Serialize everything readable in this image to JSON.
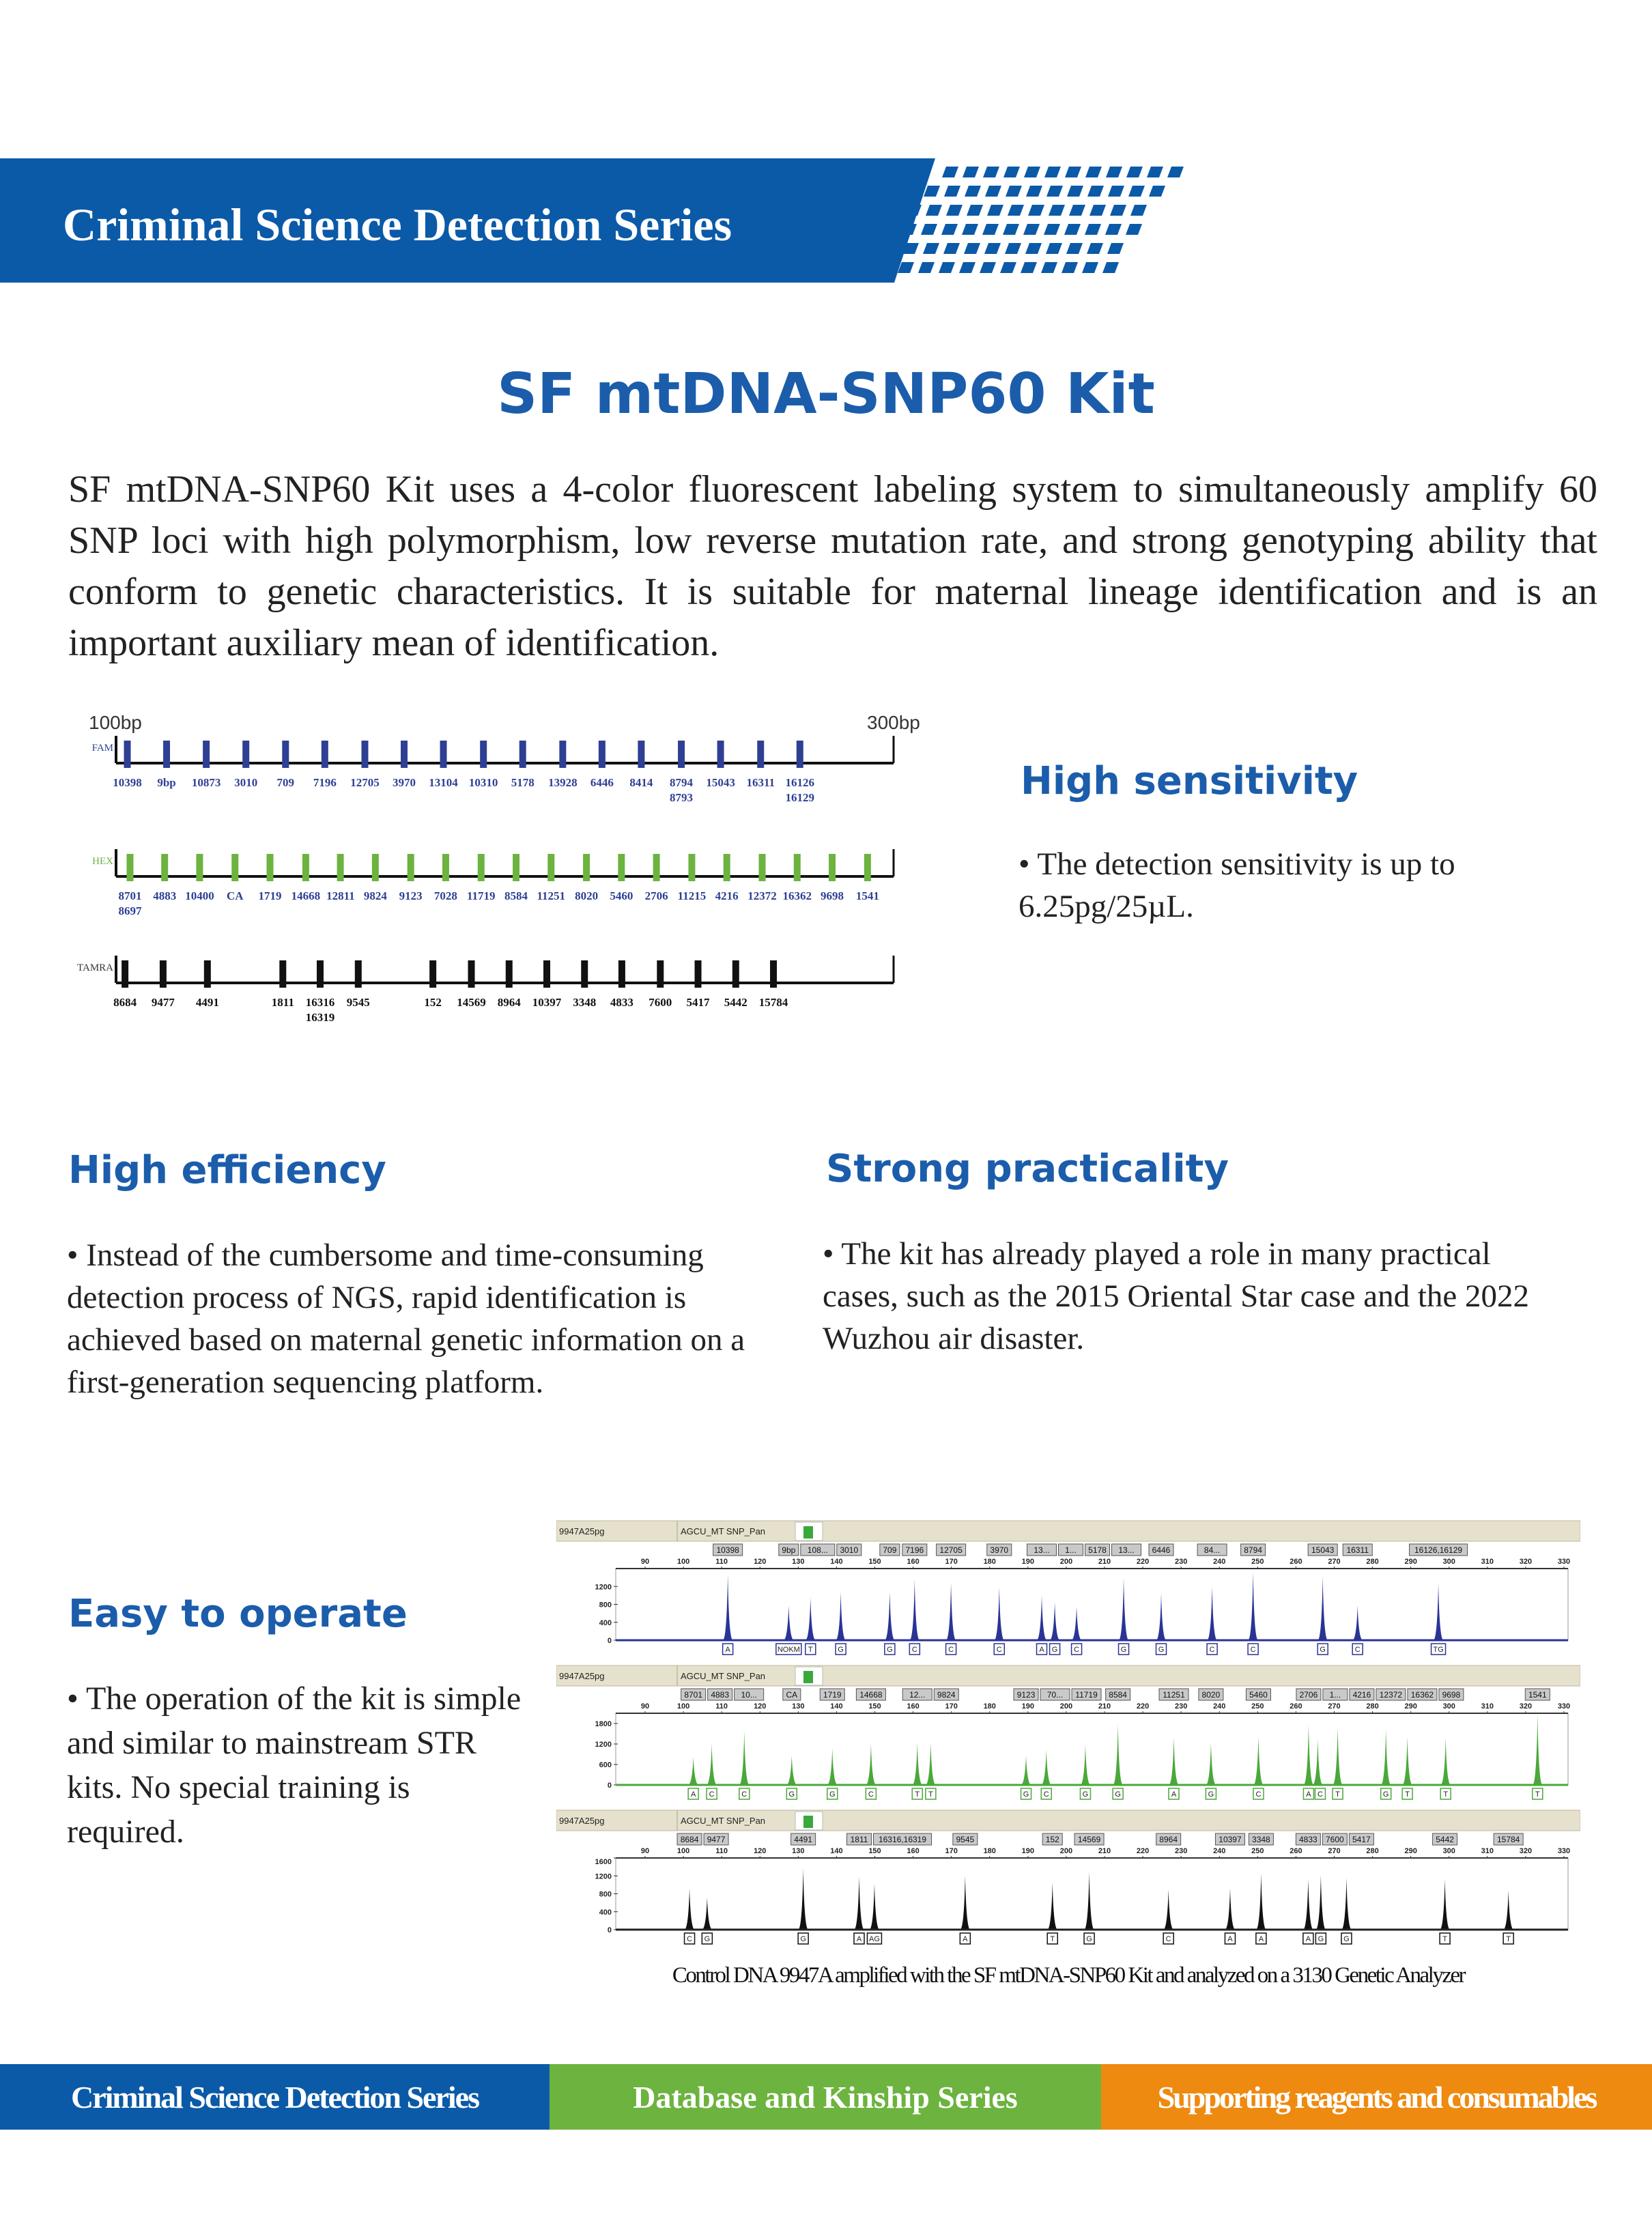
{
  "header": {
    "series_title": "Criminal Science Detection Series",
    "color": "#0b5aa8"
  },
  "product": {
    "title": "SF mtDNA-SNP60 Kit",
    "intro": "SF mtDNA-SNP60 Kit uses a 4-color fluorescent labeling system to simultaneously amplify 60 SNP loci with high polymorphism, low reverse mutation rate, and strong genotyping ability that conform to genetic characteristics. It is suitable for maternal lineage identification and is an important auxiliary mean of identification."
  },
  "marker_diagram": {
    "start_label": "100bp",
    "end_label": "300bp",
    "range_bp": [
      100,
      300
    ],
    "channels": [
      {
        "name": "FAM",
        "color": "#2e3f94",
        "loci": [
          [
            "10398"
          ],
          [
            "9bp"
          ],
          [
            "10873"
          ],
          [
            "3010"
          ],
          [
            "709"
          ],
          [
            "7196"
          ],
          [
            "12705"
          ],
          [
            "3970"
          ],
          [
            "13104"
          ],
          [
            "10310"
          ],
          [
            "5178"
          ],
          [
            "13928"
          ],
          [
            "6446"
          ],
          [
            "8414"
          ],
          [
            "8794",
            "8793"
          ],
          [
            "15043"
          ],
          [
            "16311"
          ],
          [
            "16126",
            "16129"
          ]
        ],
        "positions_bp": [
          102.9,
          113.0,
          123.2,
          133.4,
          143.6,
          153.7,
          164.0,
          174.1,
          184.2,
          194.5,
          204.6,
          214.9,
          225.0,
          235.1,
          245.4,
          255.5,
          265.8,
          275.9
        ]
      },
      {
        "name": "HEX",
        "color": "#6cb33f",
        "loci": [
          [
            "8701",
            "8697"
          ],
          [
            "4883"
          ],
          [
            "10400"
          ],
          [
            "CA"
          ],
          [
            "1719"
          ],
          [
            "14668"
          ],
          [
            "12811"
          ],
          [
            "9824"
          ],
          [
            "9123"
          ],
          [
            "7028"
          ],
          [
            "11719"
          ],
          [
            "8584"
          ],
          [
            "11251"
          ],
          [
            "8020"
          ],
          [
            "5460"
          ],
          [
            "2706"
          ],
          [
            "11215"
          ],
          [
            "4216"
          ],
          [
            "12372"
          ],
          [
            "16362"
          ],
          [
            "9698"
          ],
          [
            "1541"
          ]
        ],
        "positions_bp": [
          103.6,
          112.5,
          121.5,
          130.6,
          139.6,
          148.8,
          157.7,
          166.7,
          175.8,
          184.8,
          193.9,
          202.9,
          211.9,
          221.0,
          230.0,
          239.0,
          248.1,
          257.1,
          266.2,
          275.2,
          284.2,
          293.3
        ]
      },
      {
        "name": "TAMRA",
        "color": "#111111",
        "loci": [
          [
            "8684"
          ],
          [
            "9477"
          ],
          [
            "4491"
          ],
          [
            "1811"
          ],
          [
            "16316",
            "16319"
          ],
          [
            "9545"
          ],
          [
            "152"
          ],
          [
            "14569"
          ],
          [
            "8964"
          ],
          [
            "10397"
          ],
          [
            "3348"
          ],
          [
            "4833"
          ],
          [
            "7600"
          ],
          [
            "5417"
          ],
          [
            "5442"
          ],
          [
            "15784"
          ]
        ],
        "positions_bp": [
          102.3,
          112.1,
          123.5,
          142.9,
          152.5,
          162.3,
          181.5,
          191.4,
          201.1,
          210.8,
          220.5,
          230.1,
          240.0,
          249.7,
          259.4,
          269.1
        ]
      }
    ]
  },
  "features": {
    "sensitivity": {
      "title": "High sensitivity",
      "text": "• The detection sensitivity is up to 6.25pg/25µL."
    },
    "efficiency": {
      "title": "High efficiency",
      "text": "• Instead of the cumbersome and time-consuming detection process of NGS, rapid identification is achieved based on maternal genetic information on a first-generation sequencing platform."
    },
    "practicality": {
      "title": "Strong practicality",
      "text": "• The kit has already played a role in many practical cases, such as the 2015 Oriental Star case and the 2022 Wuzhou air disaster."
    },
    "operate": {
      "title": "Easy to operate",
      "text": "• The operation of the kit is simple and similar to mainstream STR kits. No special training is required."
    }
  },
  "chart_data": {
    "type": "electropherogram",
    "x_range_bp": [
      90,
      330
    ],
    "x_ticks": [
      90,
      100,
      110,
      120,
      130,
      140,
      150,
      160,
      170,
      180,
      190,
      200,
      210,
      220,
      230,
      240,
      250,
      260,
      270,
      280,
      290,
      300,
      310,
      320,
      330
    ],
    "panels": [
      {
        "sample": "9947A25pg",
        "panel": "AGCU_MT SNP_Pan",
        "color": "#2a3496",
        "ymax": 1600,
        "y_ticks": [
          0,
          400,
          800,
          1200
        ],
        "markers": [
          "10398",
          "9bp",
          "108...",
          "3010",
          "709",
          "7196",
          "12705",
          "3970",
          "13...",
          "1...",
          "5178",
          "13...",
          "6446",
          "84...",
          "8794",
          "15043",
          "16311",
          "16126,16129"
        ],
        "peaks_bp": [
          111.6,
          127.5,
          133.2,
          141.1,
          153.9,
          160.4,
          169.9,
          182.5,
          193.6,
          197.0,
          202.7,
          215.0,
          224.8,
          238.1,
          248.8,
          267.0,
          276.1,
          297.2
        ],
        "heights": [
          1465,
          775,
          950,
          1075,
          1075,
          1360,
          1290,
          1185,
          1000,
          850,
          750,
          1390,
          1050,
          1200,
          1525,
          1435,
          775,
          1275
        ],
        "alleles": [
          "A",
          "NOKM",
          "T",
          "G",
          "G",
          "C",
          "C",
          "C",
          "A",
          "G",
          "C",
          "G",
          "G",
          "C",
          "C",
          "G",
          "C",
          "TG"
        ]
      },
      {
        "sample": "9947A25pg",
        "panel": "AGCU_MT SNP_Pan",
        "color": "#4aa83a",
        "ymax": 2100,
        "y_ticks": [
          0,
          600,
          1200,
          1800
        ],
        "markers": [
          "8701",
          "4883",
          "10...",
          "CA",
          "1719",
          "14668",
          "12...",
          "9824",
          "9123",
          "70...",
          "11719",
          "8584",
          "11251",
          "8020",
          "5460",
          "2706",
          "1...",
          "4216",
          "12372",
          "16362",
          "9698",
          "1541"
        ],
        "peaks_bp": [
          102.6,
          107.4,
          115.9,
          128.3,
          138.9,
          149.0,
          161.1,
          164.6,
          189.5,
          194.8,
          205.0,
          213.5,
          228.1,
          237.8,
          250.2,
          263.3,
          265.7,
          270.9,
          283.5,
          289.1,
          299.1,
          323.1
        ],
        "heights": [
          828,
          1207,
          1587,
          862,
          1069,
          1207,
          1241,
          1241,
          862,
          1035,
          1186,
          1780,
          1393,
          1255,
          1428,
          1780,
          1345,
          1690,
          1640,
          1414,
          1380,
          2070
        ],
        "alleles": [
          "A",
          "C",
          "C",
          "G",
          "G",
          "C",
          "T",
          "T",
          "G",
          "C",
          "G",
          "G",
          "A",
          "G",
          "C",
          "A",
          "C",
          "T",
          "G",
          "T",
          "T",
          "T"
        ]
      },
      {
        "sample": "9947A25pg",
        "panel": "AGCU_MT SNP_Pan",
        "color": "#111111",
        "ymax": 1600,
        "y_ticks": [
          0,
          400,
          800,
          1200,
          1600
        ],
        "markers": [
          "8684",
          "9477",
          "4491",
          "1811",
          "16316,16319",
          "9545",
          "152",
          "14569",
          "8964",
          "10397",
          "3348",
          "4833",
          "7600",
          "5417",
          "5442",
          "15784"
        ],
        "peaks_bp": [
          101.6,
          106.2,
          131.3,
          145.9,
          149.9,
          173.6,
          196.4,
          206.0,
          226.7,
          242.8,
          250.9,
          263.2,
          266.5,
          273.2,
          298.9,
          315.5
        ],
        "heights": [
          925,
          718,
          1368,
          1186,
          1030,
          1212,
          1056,
          1290,
          900,
          925,
          1264,
          1134,
          1222,
          1160,
          1134,
          874
        ],
        "alleles": [
          "C",
          "G",
          "G",
          "A",
          "AG",
          "A",
          "T",
          "G",
          "C",
          "A",
          "A",
          "A",
          "G",
          "G",
          "T",
          "T"
        ]
      }
    ],
    "caption": "Control DNA 9947A amplified with the SF mtDNA-SNP60 Kit and analyzed on a 3130 Genetic Analyzer"
  },
  "footer": [
    {
      "label": "Criminal Science Detection Series",
      "color": "#0b5aa8"
    },
    {
      "label": "Database and Kinship Series",
      "color": "#6db33f"
    },
    {
      "label": "Supporting reagents and consumables",
      "color": "#ee8a10"
    }
  ]
}
